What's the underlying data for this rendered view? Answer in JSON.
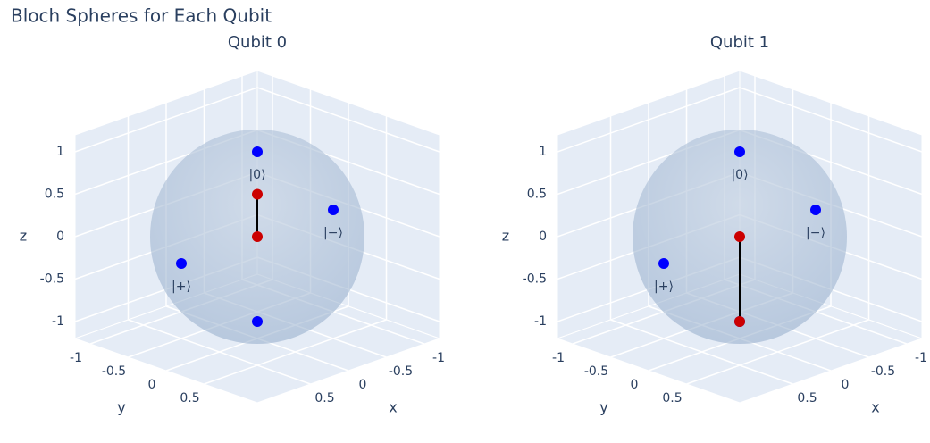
{
  "title": "Bloch Spheres for Each Qubit",
  "chart_data": [
    {
      "type": "scatter3d",
      "title": "Qubit 0",
      "xaxis_title": "x",
      "yaxis_title": "y",
      "zaxis_title": "z",
      "xlim": [
        -1.2,
        1.2
      ],
      "ylim": [
        -1.2,
        1.2
      ],
      "zlim": [
        -1.2,
        1.2
      ],
      "xticks": [
        -1,
        -0.5,
        0,
        0.5
      ],
      "yticks": [
        -1,
        -0.5,
        0,
        0.5
      ],
      "zticks": [
        -1,
        -0.5,
        0,
        0.5,
        1
      ],
      "sphere_radius": 1,
      "sphere_color": "#8fa9c9",
      "series": [
        {
          "color": "#0000ff",
          "x": [
            0,
            0,
            1,
            -1
          ],
          "y": [
            0,
            0,
            0,
            0
          ],
          "z": [
            1,
            -1,
            0,
            0
          ],
          "text": [
            "|0⟩",
            null,
            "|+⟩",
            "|−⟩"
          ]
        },
        {
          "color": "#cc0000",
          "line_color": "#000000",
          "x": [
            0,
            0
          ],
          "y": [
            0,
            0
          ],
          "z": [
            0,
            0.5
          ]
        }
      ]
    },
    {
      "type": "scatter3d",
      "title": "Qubit 1",
      "xaxis_title": "x",
      "yaxis_title": "y",
      "zaxis_title": "z",
      "xlim": [
        -1.2,
        1.2
      ],
      "ylim": [
        -1.2,
        1.2
      ],
      "zlim": [
        -1.2,
        1.2
      ],
      "xticks": [
        -1,
        -0.5,
        0,
        0.5
      ],
      "yticks": [
        -1,
        -0.5,
        0,
        0.5
      ],
      "zticks": [
        -1,
        -0.5,
        0,
        0.5,
        1
      ],
      "sphere_radius": 1,
      "sphere_color": "#8fa9c9",
      "series": [
        {
          "color": "#0000ff",
          "x": [
            0,
            0,
            1,
            -1
          ],
          "y": [
            0,
            0,
            0,
            0
          ],
          "z": [
            1,
            -1,
            0,
            0
          ],
          "text": [
            "|0⟩",
            null,
            "|+⟩",
            "|−⟩"
          ]
        },
        {
          "color": "#cc0000",
          "line_color": "#000000",
          "x": [
            0,
            0
          ],
          "y": [
            0,
            0
          ],
          "z": [
            0,
            -1
          ]
        }
      ]
    }
  ]
}
